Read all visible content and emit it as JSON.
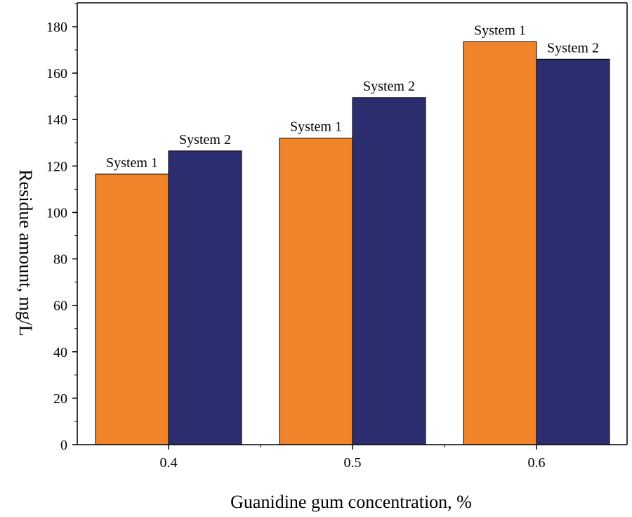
{
  "chart_data": {
    "type": "bar",
    "title": "",
    "xlabel": "Guanidine gum concentration, %",
    "ylabel": "Residue amount, mg/L",
    "categories": [
      "0.4",
      "0.5",
      "0.6"
    ],
    "ylim": [
      0,
      190
    ],
    "yticks": [
      0,
      20,
      40,
      60,
      80,
      100,
      120,
      140,
      160,
      180
    ],
    "grid": false,
    "legend": "none",
    "series": [
      {
        "name": "System 1",
        "color": "#F0842A",
        "values": [
          116.5,
          132,
          173.5
        ]
      },
      {
        "name": "System 2",
        "color": "#2B2D6E",
        "values": [
          126.5,
          149.5,
          166
        ]
      }
    ]
  }
}
